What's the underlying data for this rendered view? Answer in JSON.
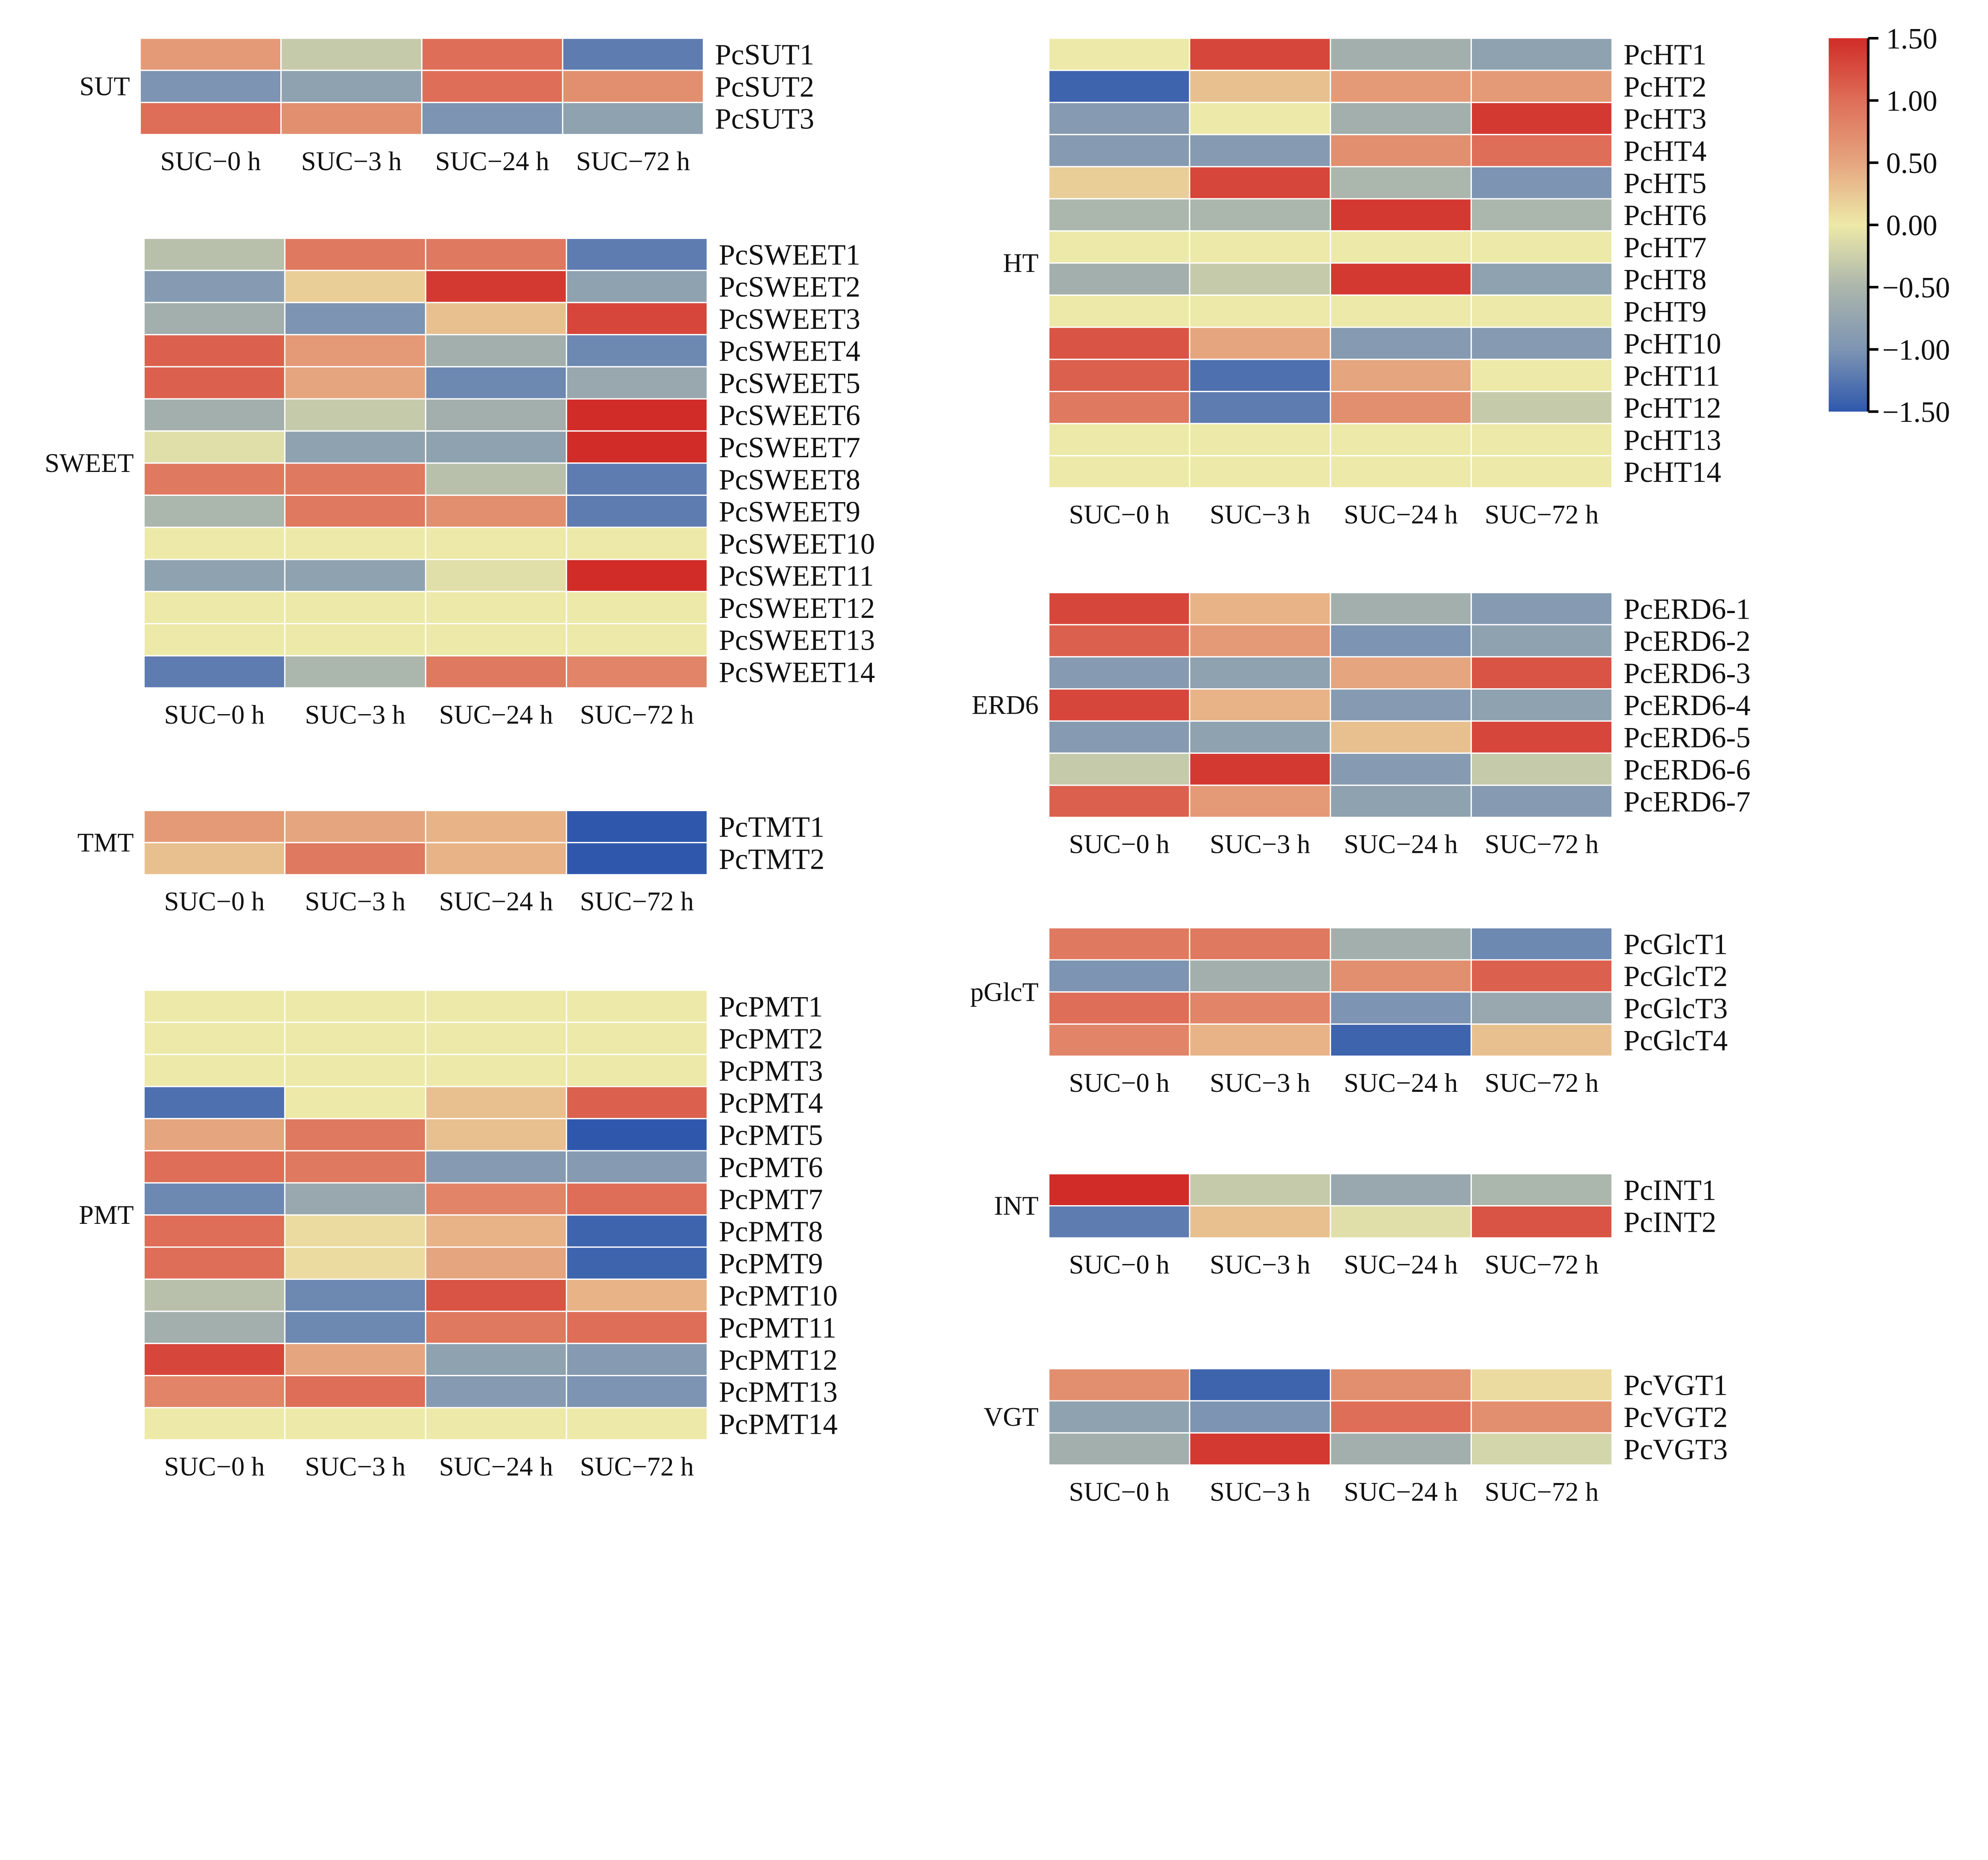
{
  "chart_data": {
    "type": "heatmap",
    "columns": [
      "SUC−0 h",
      "SUC−3 h",
      "SUC−24 h",
      "SUC−72 h"
    ],
    "colorbar": {
      "range": [
        -1.5,
        1.5
      ],
      "ticks": [
        "1.50",
        "1.00",
        "0.50",
        "0.00",
        "-0.50",
        "-1.00",
        "-1.50"
      ],
      "tick_values": [
        1.5,
        1.0,
        0.5,
        0.0,
        -0.5,
        -1.0,
        -1.5
      ],
      "colors": [
        "#2f58ad",
        "#7d94b2",
        "#abb6ac",
        "#ede9a8",
        "#e5a57f",
        "#de6e58",
        "#d12c27"
      ]
    },
    "panels": [
      {
        "group": "SUT",
        "rows": [
          {
            "gene": "PcSUT1",
            "values": [
              0.6,
              -0.3,
              1.0,
              -1.2
            ]
          },
          {
            "gene": "PcSUT2",
            "values": [
              -1.0,
              -0.8,
              1.0,
              0.7
            ]
          },
          {
            "gene": "PcSUT3",
            "values": [
              1.0,
              0.7,
              -1.0,
              -0.8
            ]
          }
        ]
      },
      {
        "group": "SWEET",
        "rows": [
          {
            "gene": "PcSWEET1",
            "values": [
              -0.4,
              0.9,
              0.9,
              -1.2
            ]
          },
          {
            "gene": "PcSWEET2",
            "values": [
              -0.9,
              0.2,
              1.4,
              -0.8
            ]
          },
          {
            "gene": "PcSWEET3",
            "values": [
              -0.6,
              -1.0,
              0.3,
              1.3
            ]
          },
          {
            "gene": "PcSWEET4",
            "values": [
              1.1,
              0.6,
              -0.6,
              -1.1
            ]
          },
          {
            "gene": "PcSWEET5",
            "values": [
              1.1,
              0.5,
              -1.1,
              -0.7
            ]
          },
          {
            "gene": "PcSWEET6",
            "values": [
              -0.6,
              -0.3,
              -0.6,
              1.5
            ]
          },
          {
            "gene": "PcSWEET7",
            "values": [
              -0.1,
              -0.8,
              -0.8,
              1.5
            ]
          },
          {
            "gene": "PcSWEET8",
            "values": [
              0.9,
              0.9,
              -0.4,
              -1.2
            ]
          },
          {
            "gene": "PcSWEET9",
            "values": [
              -0.5,
              0.9,
              0.7,
              -1.2
            ]
          },
          {
            "gene": "PcSWEET10",
            "values": [
              0.0,
              0.0,
              0.0,
              0.0
            ]
          },
          {
            "gene": "PcSWEET11",
            "values": [
              -0.8,
              -0.8,
              -0.1,
              1.5
            ]
          },
          {
            "gene": "PcSWEET12",
            "values": [
              0.0,
              0.0,
              0.0,
              0.0
            ]
          },
          {
            "gene": "PcSWEET13",
            "values": [
              0.0,
              0.0,
              0.0,
              0.0
            ]
          },
          {
            "gene": "PcSWEET14",
            "values": [
              -1.2,
              -0.5,
              0.9,
              0.8
            ]
          }
        ]
      },
      {
        "group": "TMT",
        "rows": [
          {
            "gene": "PcTMT1",
            "values": [
              0.6,
              0.5,
              0.4,
              -1.5
            ]
          },
          {
            "gene": "PcTMT2",
            "values": [
              0.3,
              0.9,
              0.4,
              -1.5
            ]
          }
        ]
      },
      {
        "group": "PMT",
        "rows": [
          {
            "gene": "PcPMT1",
            "values": [
              0.0,
              0.0,
              0.0,
              0.0
            ]
          },
          {
            "gene": "PcPMT2",
            "values": [
              0.0,
              0.0,
              0.0,
              0.0
            ]
          },
          {
            "gene": "PcPMT3",
            "values": [
              0.0,
              0.0,
              0.0,
              0.0
            ]
          },
          {
            "gene": "PcPMT4",
            "values": [
              -1.3,
              0.0,
              0.3,
              1.1
            ]
          },
          {
            "gene": "PcPMT5",
            "values": [
              0.5,
              0.9,
              0.3,
              -1.5
            ]
          },
          {
            "gene": "PcPMT6",
            "values": [
              1.0,
              0.9,
              -0.9,
              -0.9
            ]
          },
          {
            "gene": "PcPMT7",
            "values": [
              -1.1,
              -0.7,
              0.8,
              1.0
            ]
          },
          {
            "gene": "PcPMT8",
            "values": [
              1.0,
              0.1,
              0.4,
              -1.4
            ]
          },
          {
            "gene": "PcPMT9",
            "values": [
              1.0,
              0.1,
              0.5,
              -1.4
            ]
          },
          {
            "gene": "PcPMT10",
            "values": [
              -0.4,
              -1.1,
              1.2,
              0.4
            ]
          },
          {
            "gene": "PcPMT11",
            "values": [
              -0.6,
              -1.1,
              0.9,
              1.0
            ]
          },
          {
            "gene": "PcPMT12",
            "values": [
              1.3,
              0.5,
              -0.8,
              -0.9
            ]
          },
          {
            "gene": "PcPMT13",
            "values": [
              0.8,
              1.0,
              -0.9,
              -1.0
            ]
          },
          {
            "gene": "PcPMT14",
            "values": [
              0.0,
              0.0,
              0.0,
              0.0
            ]
          }
        ]
      },
      {
        "group": "HT",
        "rows": [
          {
            "gene": "PcHT1",
            "values": [
              0.0,
              1.3,
              -0.6,
              -0.8
            ]
          },
          {
            "gene": "PcHT2",
            "values": [
              -1.4,
              0.3,
              0.6,
              0.6
            ]
          },
          {
            "gene": "PcHT3",
            "values": [
              -0.9,
              0.0,
              -0.6,
              1.4
            ]
          },
          {
            "gene": "PcHT4",
            "values": [
              -0.9,
              -0.9,
              0.7,
              1.0
            ]
          },
          {
            "gene": "PcHT5",
            "values": [
              0.2,
              1.3,
              -0.5,
              -1.0
            ]
          },
          {
            "gene": "PcHT6",
            "values": [
              -0.5,
              -0.5,
              1.4,
              -0.5
            ]
          },
          {
            "gene": "PcHT7",
            "values": [
              0.0,
              0.0,
              0.0,
              0.0
            ]
          },
          {
            "gene": "PcHT8",
            "values": [
              -0.6,
              -0.3,
              1.4,
              -0.8
            ]
          },
          {
            "gene": "PcHT9",
            "values": [
              0.0,
              0.0,
              0.0,
              0.0
            ]
          },
          {
            "gene": "PcHT10",
            "values": [
              1.2,
              0.5,
              -0.9,
              -0.9
            ]
          },
          {
            "gene": "PcHT11",
            "values": [
              1.1,
              -1.3,
              0.5,
              0.0
            ]
          },
          {
            "gene": "PcHT12",
            "values": [
              0.9,
              -1.2,
              0.7,
              -0.3
            ]
          },
          {
            "gene": "PcHT13",
            "values": [
              0.0,
              0.0,
              0.0,
              0.0
            ]
          },
          {
            "gene": "PcHT14",
            "values": [
              0.0,
              0.0,
              0.0,
              0.0
            ]
          }
        ]
      },
      {
        "group": "ERD6",
        "rows": [
          {
            "gene": "PcERD6-1",
            "values": [
              1.3,
              0.4,
              -0.6,
              -0.9
            ]
          },
          {
            "gene": "PcERD6-2",
            "values": [
              1.1,
              0.6,
              -1.0,
              -0.8
            ]
          },
          {
            "gene": "PcERD6-3",
            "values": [
              -0.9,
              -0.8,
              0.5,
              1.2
            ]
          },
          {
            "gene": "PcERD6-4",
            "values": [
              1.3,
              0.4,
              -0.9,
              -0.8
            ]
          },
          {
            "gene": "PcERD6-5",
            "values": [
              -0.9,
              -0.8,
              0.3,
              1.3
            ]
          },
          {
            "gene": "PcERD6-6",
            "values": [
              -0.3,
              1.4,
              -0.9,
              -0.3
            ]
          },
          {
            "gene": "PcERD6-7",
            "values": [
              1.1,
              0.6,
              -0.8,
              -0.9
            ]
          }
        ]
      },
      {
        "group": "pGlcT",
        "rows": [
          {
            "gene": "PcGlcT1",
            "values": [
              0.9,
              0.9,
              -0.6,
              -1.1
            ]
          },
          {
            "gene": "PcGlcT2",
            "values": [
              -1.0,
              -0.6,
              0.7,
              1.1
            ]
          },
          {
            "gene": "PcGlcT3",
            "values": [
              1.0,
              0.8,
              -1.0,
              -0.7
            ]
          },
          {
            "gene": "PcGlcT4",
            "values": [
              0.8,
              0.4,
              -1.4,
              0.3
            ]
          }
        ]
      },
      {
        "group": "INT",
        "rows": [
          {
            "gene": "PcINT1",
            "values": [
              1.5,
              -0.3,
              -0.7,
              -0.5
            ]
          },
          {
            "gene": "PcINT2",
            "values": [
              -1.2,
              0.3,
              -0.1,
              1.2
            ]
          }
        ]
      },
      {
        "group": "VGT",
        "rows": [
          {
            "gene": "PcVGT1",
            "values": [
              0.7,
              -1.4,
              0.7,
              0.1
            ]
          },
          {
            "gene": "PcVGT2",
            "values": [
              -0.8,
              -1.0,
              1.0,
              0.7
            ]
          },
          {
            "gene": "PcVGT3",
            "values": [
              -0.6,
              1.4,
              -0.6,
              -0.2
            ]
          }
        ]
      }
    ]
  }
}
